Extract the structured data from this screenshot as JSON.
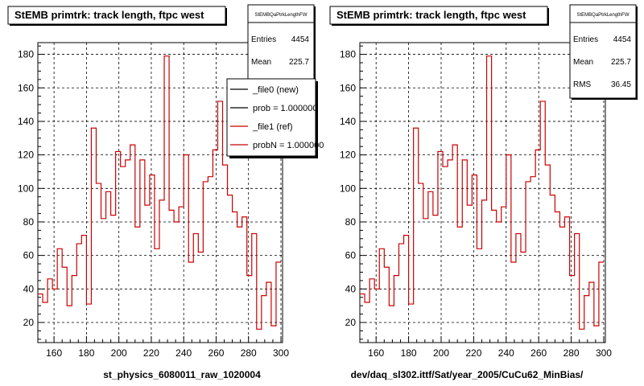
{
  "footer_note": "",
  "chart_data": [
    {
      "type": "line",
      "title": "StEMB primtrk: track length, ftpc west",
      "stats": {
        "name": "StEMBQaPtrkLengthFW",
        "entries_label": "Entries",
        "entries": "4454",
        "mean_label": "Mean",
        "mean": "225.7"
      },
      "xlabel": "st_physics_6080011_raw_1020004",
      "xlim": [
        150,
        301
      ],
      "ylim": [
        8,
        187
      ],
      "xticks": [
        160,
        180,
        200,
        220,
        240,
        260,
        280,
        300
      ],
      "yticks": [
        20,
        40,
        60,
        80,
        100,
        120,
        140,
        160,
        180
      ],
      "grid": true,
      "line_color": "#cc0000",
      "legend": {
        "placement": "top-right",
        "entries": [
          {
            "label": "_file0 (new)",
            "color": "#000000"
          },
          {
            "label": "prob = 1.000000",
            "color": "#000000"
          },
          {
            "label": "_file1 (ref)",
            "color": "#cc0000"
          },
          {
            "label": "probN = 1.000000",
            "color": "#cc0000"
          }
        ]
      },
      "series": [
        {
          "bin_width": 3,
          "x": [
            150,
            153,
            156,
            159,
            162,
            165,
            168,
            171,
            174,
            177,
            180,
            183,
            186,
            189,
            192,
            195,
            198,
            201,
            204,
            207,
            210,
            213,
            216,
            219,
            222,
            225,
            228,
            231,
            234,
            237,
            240,
            243,
            246,
            249,
            252,
            255,
            258,
            261,
            264,
            267,
            270,
            273,
            276,
            279,
            282,
            285,
            288,
            291,
            294,
            297
          ],
          "values": [
            37,
            32,
            46,
            40,
            64,
            53,
            30,
            48,
            67,
            72,
            31,
            136,
            103,
            82,
            98,
            84,
            122,
            113,
            117,
            126,
            77,
            117,
            90,
            108,
            64,
            93,
            179,
            87,
            80,
            89,
            120,
            56,
            73,
            62,
            104,
            107,
            123,
            152,
            114,
            96,
            86,
            77,
            83,
            48,
            73,
            16,
            36,
            44,
            18,
            56
          ]
        }
      ]
    },
    {
      "type": "line",
      "title": "StEMB primtrk: track length, ftpc west",
      "stats": {
        "name": "StEMBQaPtrkLengthFW",
        "entries_label": "Entries",
        "entries": "4454",
        "mean_label": "Mean",
        "mean": "225.7",
        "rms_label": "RMS",
        "rms": "36.45"
      },
      "xlabel": "dev/daq_sl302.ittf/Sat/year_2005/CuCu62_MinBias/",
      "xlim": [
        150,
        301
      ],
      "ylim": [
        8,
        187
      ],
      "xticks": [
        160,
        180,
        200,
        220,
        240,
        260,
        280,
        300
      ],
      "yticks": [
        20,
        40,
        60,
        80,
        100,
        120,
        140,
        160,
        180
      ],
      "grid": true,
      "line_color": "#cc0000",
      "series": [
        {
          "bin_width": 3,
          "x": [
            150,
            153,
            156,
            159,
            162,
            165,
            168,
            171,
            174,
            177,
            180,
            183,
            186,
            189,
            192,
            195,
            198,
            201,
            204,
            207,
            210,
            213,
            216,
            219,
            222,
            225,
            228,
            231,
            234,
            237,
            240,
            243,
            246,
            249,
            252,
            255,
            258,
            261,
            264,
            267,
            270,
            273,
            276,
            279,
            282,
            285,
            288,
            291,
            294,
            297
          ],
          "values": [
            37,
            32,
            46,
            40,
            64,
            53,
            30,
            48,
            67,
            72,
            31,
            136,
            103,
            82,
            98,
            84,
            122,
            113,
            117,
            126,
            77,
            117,
            90,
            108,
            64,
            93,
            179,
            87,
            80,
            89,
            120,
            56,
            73,
            62,
            104,
            107,
            123,
            152,
            114,
            96,
            86,
            77,
            83,
            48,
            73,
            16,
            36,
            44,
            18,
            56
          ]
        }
      ]
    }
  ]
}
